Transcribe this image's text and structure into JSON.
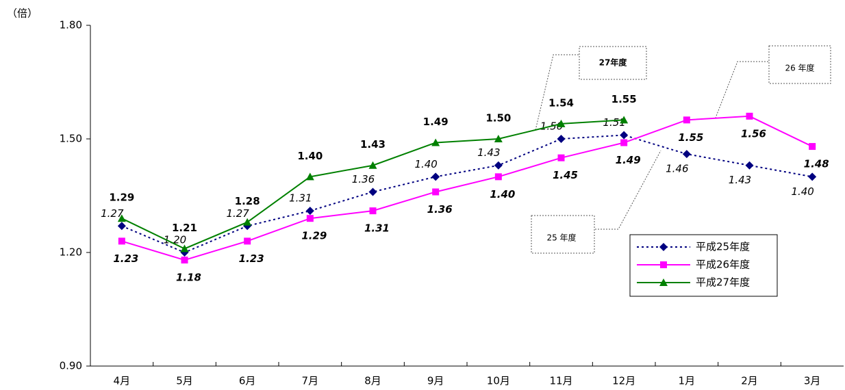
{
  "chart_data": {
    "type": "line",
    "y_label": "（倍）",
    "categories": [
      "4月",
      "5月",
      "6月",
      "7月",
      "8月",
      "9月",
      "10月",
      "11月",
      "12月",
      "1月",
      "2月",
      "3月"
    ],
    "series": [
      {
        "name": "平成25年度",
        "color": "#000080",
        "marker": "diamond",
        "dashed": true,
        "values": [
          1.27,
          1.2,
          1.27,
          1.31,
          1.36,
          1.4,
          1.43,
          1.5,
          1.51,
          1.46,
          1.43,
          1.4
        ],
        "value_labels": [
          "1.27",
          "1.20",
          "1.27",
          "1.31",
          "1.36",
          "1.40",
          "1.43",
          "1.50",
          "1.51",
          "1.46",
          "1.43",
          "1.40"
        ]
      },
      {
        "name": "平成26年度",
        "color": "#ff00ff",
        "marker": "square",
        "dashed": false,
        "values": [
          1.23,
          1.18,
          1.23,
          1.29,
          1.31,
          1.36,
          1.4,
          1.45,
          1.49,
          1.55,
          1.56,
          1.48
        ],
        "value_labels": [
          "1.23",
          "1.18",
          "1.23",
          "1.29",
          "1.31",
          "1.36",
          "1.40",
          "1.45",
          "1.49",
          "1.55",
          "1.56",
          "1.48"
        ]
      },
      {
        "name": "平成27年度",
        "color": "#008000",
        "marker": "triangle",
        "dashed": false,
        "values": [
          1.29,
          1.21,
          1.28,
          1.4,
          1.43,
          1.49,
          1.5,
          1.54,
          1.55,
          null,
          null,
          null
        ],
        "value_labels": [
          "1.29",
          "1.21",
          "1.28",
          "1.40",
          "1.43",
          "1.49",
          "1.50",
          "1.54",
          "1.55",
          null,
          null,
          null
        ]
      }
    ],
    "ylim": [
      0.9,
      1.8
    ],
    "yticks": [
      {
        "value": 0.9,
        "label": "0.90"
      },
      {
        "value": 1.2,
        "label": "1.20"
      },
      {
        "value": 1.5,
        "label": "1.50"
      },
      {
        "value": 1.8,
        "label": "1.80"
      }
    ],
    "annotations": [
      "27年度",
      "26 年度",
      "25 年度"
    ],
    "legend": "lower right"
  }
}
